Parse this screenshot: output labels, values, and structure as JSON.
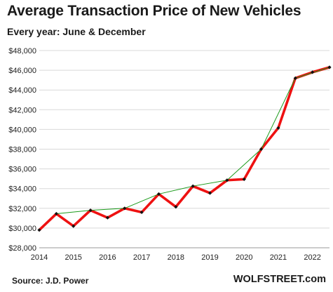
{
  "header": {
    "title": "Average Transaction  Price of New Vehicles",
    "subtitle": "Every year: June & December"
  },
  "footer": {
    "source": "Source: J.D. Power",
    "brand": "WOLFSTREET.com"
  },
  "colors": {
    "primary_series": "#ee1111",
    "trend_line": "#1a9a1a",
    "points": "#111111",
    "grid": "#d9d9d9"
  },
  "chart_data": {
    "type": "line",
    "title": "Average Transaction  Price of New Vehicles",
    "subtitle": "Every year: June & December",
    "xlabel": "",
    "ylabel": "",
    "x_tick_labels": [
      "2014",
      "2015",
      "2016",
      "2017",
      "2018",
      "2019",
      "2020",
      "2021",
      "2022"
    ],
    "y_tick_labels": [
      "$28,000",
      "$30,000",
      "$32,000",
      "$34,000",
      "$36,000",
      "$38,000",
      "$40,000",
      "$42,000",
      "$44,000",
      "$46,000",
      "$48,000"
    ],
    "ylim": [
      28000,
      48000
    ],
    "xlim": [
      2014.0,
      2022.5
    ],
    "grid": "horizontal",
    "legend": "none",
    "series": [
      {
        "x": [
          2014.0,
          2014.5,
          2015.0,
          2015.5,
          2016.0,
          2016.5,
          2017.0,
          2017.5,
          2018.0,
          2018.5,
          2019.0,
          2019.5,
          2020.0,
          2020.5,
          2021.0,
          2021.5,
          2022.0,
          2022.5
        ],
        "values": [
          29800,
          31450,
          30200,
          31800,
          31050,
          32000,
          31600,
          33450,
          32150,
          34250,
          33550,
          34850,
          34950,
          38000,
          40150,
          45200,
          45800,
          46300
        ],
        "style": "thick-red-with-markers"
      },
      {
        "x": [
          2014.5,
          2015.5,
          2016.5,
          2017.5,
          2018.5,
          2019.5,
          2020.5,
          2021.5,
          2022.5
        ],
        "values": [
          31450,
          31800,
          32000,
          33450,
          34250,
          34850,
          38000,
          45200,
          46300
        ],
        "style": "thin-green"
      }
    ]
  }
}
